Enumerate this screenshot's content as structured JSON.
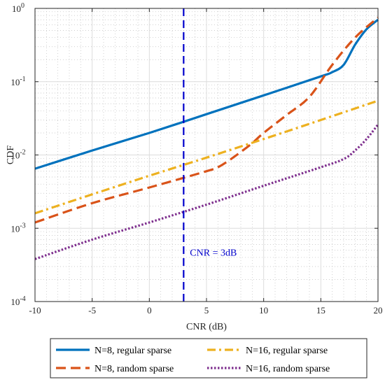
{
  "chart_data": {
    "type": "line",
    "xlabel": "CNR (dB)",
    "ylabel": "CDF",
    "xlim": [
      -10,
      20
    ],
    "ylim": [
      0.0001,
      1
    ],
    "yscale": "log",
    "grid": true,
    "minor_grid": true,
    "legend_position": "bottom-outside",
    "x_ticks": [
      -10,
      -5,
      0,
      5,
      10,
      15,
      20
    ],
    "x_tick_labels": [
      "-10",
      "-5",
      "0",
      "5",
      "10",
      "15",
      "20"
    ],
    "y_ticks": [
      0.0001,
      0.001,
      0.01,
      0.1,
      1
    ],
    "y_tick_labels": [
      {
        "base": "10",
        "exp": "-4"
      },
      {
        "base": "10",
        "exp": "-3"
      },
      {
        "base": "10",
        "exp": "-2"
      },
      {
        "base": "10",
        "exp": "-1"
      },
      {
        "base": "10",
        "exp": "0"
      }
    ],
    "series": [
      {
        "name": "N=8, regular sparse",
        "color": "#0072BD",
        "style": "solid",
        "x": [
          -10,
          -5,
          0,
          5,
          10,
          15,
          16,
          17,
          18,
          19,
          20
        ],
        "y": [
          0.0065,
          0.0115,
          0.02,
          0.036,
          0.065,
          0.118,
          0.135,
          0.17,
          0.32,
          0.52,
          0.7
        ]
      },
      {
        "name": "N=8, random sparse",
        "color": "#D95319",
        "style": "dashed",
        "x": [
          -10,
          -5,
          0,
          5,
          6,
          7,
          8,
          9,
          10,
          12,
          14,
          16,
          18,
          20
        ],
        "y": [
          0.0012,
          0.0022,
          0.0036,
          0.006,
          0.0068,
          0.0085,
          0.011,
          0.0145,
          0.02,
          0.035,
          0.062,
          0.17,
          0.4,
          0.75
        ]
      },
      {
        "name": "N=16, regular sparse",
        "color": "#EDB120",
        "style": "dashdot",
        "x": [
          -10,
          -5,
          0,
          5,
          10,
          15,
          20
        ],
        "y": [
          0.0016,
          0.0029,
          0.0052,
          0.0092,
          0.0165,
          0.03,
          0.055
        ]
      },
      {
        "name": "N=16, random sparse",
        "color": "#7E2F8E",
        "style": "dotted",
        "x": [
          -10,
          -5,
          0,
          5,
          10,
          15,
          17,
          18,
          19,
          20
        ],
        "y": [
          0.00038,
          0.0007,
          0.0012,
          0.0021,
          0.0038,
          0.0068,
          0.0088,
          0.0115,
          0.0165,
          0.026
        ]
      }
    ],
    "annotations": [
      {
        "type": "vline",
        "x": 3,
        "color": "#0000CC",
        "style": "dashed"
      },
      {
        "type": "text",
        "text": "CNR = 3dB",
        "x": 5.6,
        "y": 0.00042,
        "color": "#0000CC"
      }
    ]
  }
}
